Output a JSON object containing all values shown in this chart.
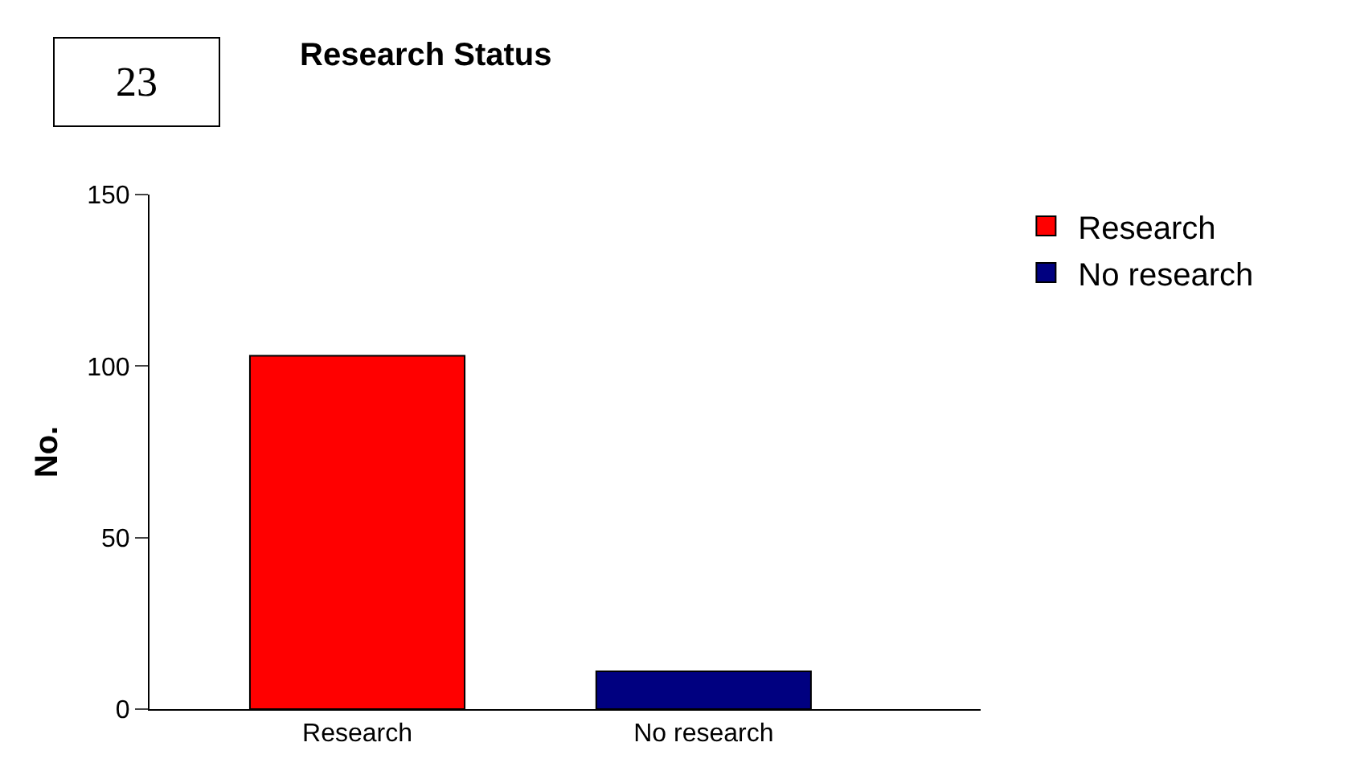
{
  "chart_data": {
    "type": "bar",
    "title": "Research Status",
    "ylabel": "No.",
    "categories": [
      "Research",
      "No research"
    ],
    "series": [
      {
        "name": "Research",
        "color": "#ff0000",
        "values": [
          103,
          null
        ]
      },
      {
        "name": "No research",
        "color": "#000080",
        "values": [
          null,
          11
        ]
      }
    ],
    "ylim": [
      0,
      150
    ],
    "yticks": [
      0,
      50,
      100,
      150
    ],
    "legend": "top right",
    "annotations": [
      "23"
    ]
  }
}
